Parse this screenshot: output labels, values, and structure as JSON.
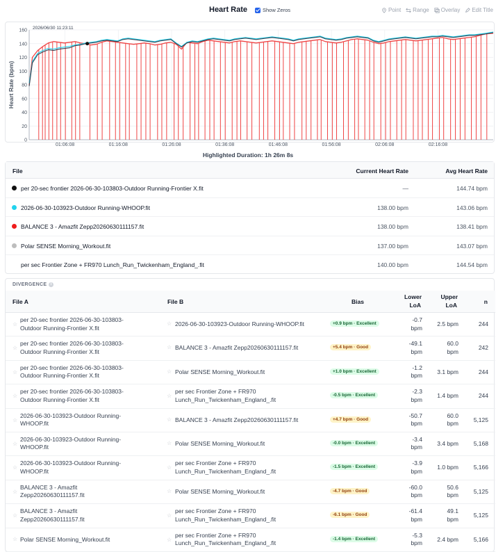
{
  "header": {
    "title": "Heart Rate",
    "show_zeros_label": "Show Zeros",
    "show_zeros_checked": true,
    "tools": [
      {
        "label": "Point",
        "icon": "pin-icon"
      },
      {
        "label": "Range",
        "icon": "range-icon"
      },
      {
        "label": "Overlay",
        "icon": "overlay-icon"
      },
      {
        "label": "Edit Title",
        "icon": "pencil-icon"
      }
    ]
  },
  "chart_data": {
    "type": "line",
    "title": "",
    "tooltip_time": "2026/06/30 11:23:11",
    "ylabel": "Heart Rate (bpm)",
    "xlabel": "",
    "ylim": [
      0,
      160
    ],
    "yticks": [
      0,
      20,
      40,
      60,
      80,
      100,
      120,
      140,
      160
    ],
    "x_start_minute": 59.4,
    "x_end_minute": 146.5,
    "xticks": [
      {
        "minute": 66.13,
        "label": "01:06:08"
      },
      {
        "minute": 76.13,
        "label": "01:16:08"
      },
      {
        "minute": 86.13,
        "label": "01:26:08"
      },
      {
        "minute": 96.13,
        "label": "01:36:08"
      },
      {
        "minute": 106.13,
        "label": "01:46:08"
      },
      {
        "minute": 116.13,
        "label": "01:56:08"
      },
      {
        "minute": 126.13,
        "label": "02:06:08"
      },
      {
        "minute": 136.13,
        "label": "02:16:08"
      }
    ],
    "grid": true,
    "marker": {
      "minute": 70.3,
      "value": 140
    },
    "series": [
      {
        "color": "#ef4444",
        "minutes": [
          59.4,
          60,
          61,
          62,
          63,
          64,
          65,
          66,
          67,
          68,
          69,
          70,
          71,
          72,
          73,
          74,
          75,
          76,
          77,
          78,
          79,
          80,
          81,
          82,
          83,
          84,
          85,
          86,
          87,
          88,
          89,
          90,
          91,
          92,
          93,
          94,
          95,
          96,
          97,
          98,
          99,
          100,
          101,
          102,
          103,
          104,
          105,
          106,
          107,
          108,
          109,
          110,
          111,
          112,
          113,
          114,
          115,
          116,
          117,
          118,
          119,
          120,
          121,
          122,
          123,
          124,
          125,
          126,
          127,
          128,
          129,
          130,
          131,
          132,
          133,
          134,
          135,
          136,
          137,
          138,
          139,
          140,
          141,
          142,
          143,
          144,
          145,
          146.5
        ],
        "values": [
          80,
          120,
          130,
          136,
          141,
          143,
          142,
          141,
          142,
          143,
          141,
          140,
          138,
          139,
          142,
          144,
          143,
          142,
          141,
          140,
          139,
          140,
          141,
          140,
          138,
          139,
          141,
          142,
          139,
          132,
          142,
          141,
          140,
          143,
          145,
          144,
          143,
          142,
          141,
          143,
          144,
          143,
          142,
          141,
          142,
          143,
          144,
          143,
          142,
          141,
          140,
          142,
          143,
          144,
          145,
          146,
          143,
          142,
          141,
          142,
          144,
          146,
          147,
          146,
          145,
          142,
          140,
          141,
          143,
          144,
          145,
          146,
          145,
          144,
          145,
          146,
          147,
          148,
          149,
          147,
          146,
          147,
          148,
          149,
          150,
          152,
          154,
          155
        ]
      },
      {
        "color": "#374151",
        "minutes": [
          59.4,
          60,
          61,
          62,
          63,
          64,
          65,
          66,
          67,
          68,
          69,
          70,
          71,
          72,
          73,
          74,
          75,
          76,
          77,
          78,
          79,
          80,
          81,
          82,
          83,
          84,
          85,
          86,
          87,
          88,
          89,
          90,
          91,
          92,
          93,
          94,
          95,
          96,
          97,
          98,
          99,
          100,
          101,
          102,
          103,
          104,
          105,
          106,
          107,
          108,
          109,
          110,
          111,
          112,
          113,
          114,
          115,
          116,
          117,
          118,
          119,
          120,
          121,
          122,
          123,
          124,
          125,
          126,
          127,
          128,
          129,
          130,
          131,
          132,
          133,
          134,
          135,
          136,
          137,
          138,
          139,
          140,
          141,
          142,
          143,
          144,
          145,
          146.5
        ],
        "values": [
          78,
          112,
          124,
          128,
          131,
          130,
          132,
          133,
          134,
          137,
          138,
          140,
          141,
          142,
          144,
          145,
          144,
          143,
          146,
          147,
          146,
          145,
          144,
          143,
          142,
          144,
          145,
          146,
          140,
          135,
          141,
          143,
          142,
          144,
          146,
          147,
          146,
          145,
          144,
          146,
          147,
          148,
          147,
          146,
          147,
          148,
          149,
          148,
          147,
          146,
          144,
          146,
          147,
          148,
          149,
          150,
          147,
          146,
          145,
          146,
          148,
          149,
          150,
          149,
          148,
          144,
          142,
          144,
          146,
          147,
          148,
          149,
          148,
          147,
          148,
          149,
          150,
          150,
          151,
          150,
          149,
          150,
          151,
          152,
          152,
          153,
          154,
          156
        ]
      },
      {
        "color": "#22d3ee",
        "minutes": [
          59.4,
          60,
          61,
          62,
          63,
          64,
          65,
          66,
          67,
          68,
          69,
          70,
          71,
          72,
          73,
          74,
          75,
          76,
          77,
          78,
          79,
          80,
          81,
          82,
          83,
          84,
          85,
          86,
          87,
          88,
          89,
          90,
          91,
          92,
          93,
          94,
          95,
          96,
          97,
          98,
          99,
          100,
          101,
          102,
          103,
          104,
          105,
          106,
          107,
          108,
          109,
          110,
          111,
          112,
          113,
          114,
          115,
          116,
          117,
          118,
          119,
          120,
          121,
          122,
          123,
          124,
          125,
          126,
          127,
          128,
          129,
          130,
          131,
          132,
          133,
          134,
          135,
          136,
          137,
          138,
          139,
          140,
          141,
          142,
          143,
          144,
          145,
          146.5
        ],
        "values": [
          82,
          114,
          126,
          130,
          133,
          132,
          134,
          135,
          136,
          138,
          139,
          141,
          142,
          143,
          145,
          146,
          145,
          144,
          147,
          148,
          147,
          146,
          145,
          144,
          143,
          145,
          146,
          147,
          141,
          136,
          142,
          144,
          143,
          145,
          147,
          148,
          147,
          146,
          145,
          147,
          148,
          149,
          148,
          147,
          148,
          149,
          150,
          149,
          148,
          147,
          145,
          147,
          148,
          149,
          150,
          151,
          148,
          147,
          146,
          147,
          149,
          150,
          151,
          150,
          149,
          145,
          143,
          145,
          147,
          148,
          149,
          150,
          149,
          148,
          149,
          150,
          151,
          151,
          152,
          151,
          150,
          151,
          152,
          153,
          153,
          154,
          155,
          157
        ]
      }
    ],
    "zero_drop_minutes": [
      61.2,
      61.9,
      62.4,
      63.1,
      63.8,
      64.6,
      65.3,
      66.2,
      67.4,
      68.1,
      68.9,
      70.8,
      72.2,
      73.1,
      74.5,
      75.6,
      76.4,
      77.5,
      78.2,
      79.6,
      80.4,
      81.3,
      82.1,
      83.5,
      84.3,
      85.2,
      86.6,
      87.4,
      88.3,
      89.6,
      90.5,
      91.2,
      92.4,
      93.3,
      94.1,
      95.3,
      96.2,
      97.5,
      98.4,
      99.1,
      100.3,
      101.2,
      102.6,
      103.4,
      104.2,
      105.5,
      106.4,
      107.1,
      108.3,
      109.2,
      110.6,
      111.4,
      112.3,
      113.5,
      114.2,
      115.4,
      116.3,
      117.1,
      118.4,
      119.3,
      120.5,
      121.2,
      122.4,
      123.3,
      124.1,
      125.4,
      126.3,
      127.2,
      128.4,
      129.3,
      130.1,
      131.5,
      132.4,
      133.2,
      134.3,
      135.1,
      136.4,
      137.2,
      138.5,
      139.4,
      140.3,
      141.2,
      142.4,
      143.3,
      144.2,
      145.3
    ]
  },
  "highlight": {
    "label": "Highlighted Duration: 1h 26m 8s"
  },
  "files": {
    "headers": {
      "file": "File",
      "current": "Current Heart Rate",
      "avg": "Avg Heart Rate"
    },
    "rows": [
      {
        "name": "per 20-sec frontier 2026-06-30-103803-Outdoor Running-Frontier X.fit",
        "current": "—",
        "avg": "144.74 bpm",
        "color": "#111111"
      },
      {
        "name": "2026-06-30-103923-Outdoor Running-WHOOP.fit",
        "current": "138.00 bpm",
        "avg": "143.06 bpm",
        "color": "#22d3ee"
      },
      {
        "name": "BALANCE 3 - Amazfit Zepp20260630111157.fit",
        "current": "138.00 bpm",
        "avg": "138.41 bpm",
        "color": "#ef1c1c"
      },
      {
        "name": "Polar SENSE Morning_Workout.fit",
        "current": "137.00 bpm",
        "avg": "143.07 bpm",
        "color": "#bdbdbd"
      },
      {
        "name": "per sec Frontier Zone + FR970 Lunch_Run_Twickenham_England_.fit",
        "current": "140.00 bpm",
        "avg": "144.54 bpm",
        "color": ""
      }
    ]
  },
  "divergence": {
    "title": "DIVERGENCE",
    "headers": {
      "file_a": "File A",
      "file_b": "File B",
      "bias": "Bias",
      "lower_1": "Lower",
      "lower_2": "LoA",
      "upper_1": "Upper",
      "upper_2": "LoA",
      "n": "n"
    },
    "rows": [
      {
        "a1": "per 20-sec frontier 2026-06-30-103803-",
        "a2": "Outdoor Running-Frontier X.fit",
        "b1": "2026-06-30-103923-Outdoor Running-WHOOP.fit",
        "b2": "",
        "bias": "+0.9 bpm · Excellent",
        "rating": "excellent",
        "lo1": "-0.7",
        "lo2": "bpm",
        "up1": "2.5 bpm",
        "up2": "",
        "n": "244"
      },
      {
        "a1": "per 20-sec frontier 2026-06-30-103803-",
        "a2": "Outdoor Running-Frontier X.fit",
        "b1": "BALANCE 3 - Amazfit Zepp20260630111157.fit",
        "b2": "",
        "bias": "+5.4 bpm · Good",
        "rating": "good",
        "lo1": "-49.1",
        "lo2": "bpm",
        "up1": "60.0",
        "up2": "bpm",
        "n": "242"
      },
      {
        "a1": "per 20-sec frontier 2026-06-30-103803-",
        "a2": "Outdoor Running-Frontier X.fit",
        "b1": "Polar SENSE Morning_Workout.fit",
        "b2": "",
        "bias": "+1.0 bpm · Excellent",
        "rating": "excellent",
        "lo1": "-1.2",
        "lo2": "bpm",
        "up1": "3.1 bpm",
        "up2": "",
        "n": "244"
      },
      {
        "a1": "per 20-sec frontier 2026-06-30-103803-",
        "a2": "Outdoor Running-Frontier X.fit",
        "b1": "per sec Frontier Zone + FR970",
        "b2": "Lunch_Run_Twickenham_England_.fit",
        "bias": "-0.5 bpm · Excellent",
        "rating": "excellent",
        "lo1": "-2.3",
        "lo2": "bpm",
        "up1": "1.4 bpm",
        "up2": "",
        "n": "244"
      },
      {
        "a1": "2026-06-30-103923-Outdoor Running-",
        "a2": "WHOOP.fit",
        "b1": "BALANCE 3 - Amazfit Zepp20260630111157.fit",
        "b2": "",
        "bias": "+4.7 bpm · Good",
        "rating": "good",
        "lo1": "-50.7",
        "lo2": "bpm",
        "up1": "60.0",
        "up2": "bpm",
        "n": "5,125"
      },
      {
        "a1": "2026-06-30-103923-Outdoor Running-",
        "a2": "WHOOP.fit",
        "b1": "Polar SENSE Morning_Workout.fit",
        "b2": "",
        "bias": "-0.0 bpm · Excellent",
        "rating": "excellent",
        "lo1": "-3.4",
        "lo2": "bpm",
        "up1": "3.4 bpm",
        "up2": "",
        "n": "5,168"
      },
      {
        "a1": "2026-06-30-103923-Outdoor Running-",
        "a2": "WHOOP.fit",
        "b1": "per sec Frontier Zone + FR970",
        "b2": "Lunch_Run_Twickenham_England_.fit",
        "bias": "-1.5 bpm · Excellent",
        "rating": "excellent",
        "lo1": "-3.9",
        "lo2": "bpm",
        "up1": "1.0 bpm",
        "up2": "",
        "n": "5,166"
      },
      {
        "a1": "BALANCE 3 - Amazfit",
        "a2": "Zepp20260630111157.fit",
        "b1": "Polar SENSE Morning_Workout.fit",
        "b2": "",
        "bias": "-4.7 bpm · Good",
        "rating": "good",
        "lo1": "-60.0",
        "lo2": "bpm",
        "up1": "50.6",
        "up2": "bpm",
        "n": "5,125"
      },
      {
        "a1": "BALANCE 3 - Amazfit",
        "a2": "Zepp20260630111157.fit",
        "b1": "per sec Frontier Zone + FR970",
        "b2": "Lunch_Run_Twickenham_England_.fit",
        "bias": "-6.1 bpm · Good",
        "rating": "good",
        "lo1": "-61.4",
        "lo2": "bpm",
        "up1": "49.1",
        "up2": "bpm",
        "n": "5,125"
      },
      {
        "a1": "Polar SENSE Morning_Workout.fit",
        "a2": "",
        "b1": "per sec Frontier Zone + FR970",
        "b2": "Lunch_Run_Twickenham_England_.fit",
        "bias": "-1.4 bpm · Excellent",
        "rating": "excellent",
        "lo1": "-5.3",
        "lo2": "bpm",
        "up1": "2.4 bpm",
        "up2": "",
        "n": "5,166"
      }
    ]
  }
}
